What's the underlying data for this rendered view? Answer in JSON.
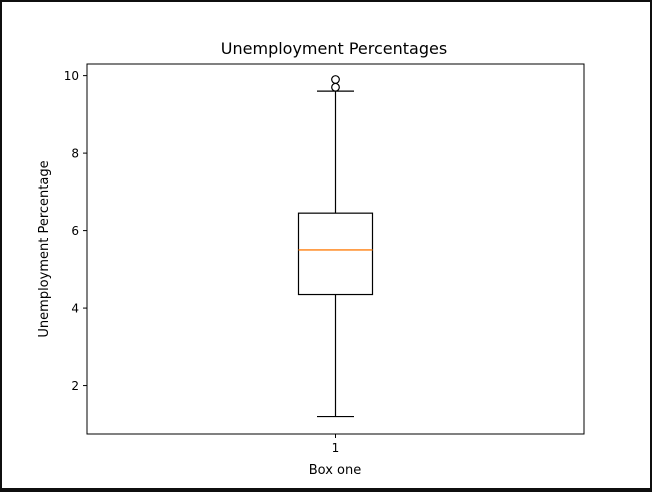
{
  "chart_data": {
    "type": "box",
    "title": "Unemployment Percentages",
    "xlabel": "Box one",
    "ylabel": "Unemployment Percentage",
    "categories": [
      "1"
    ],
    "boxes": [
      {
        "label": "1",
        "whisker_low": 1.2,
        "q1": 4.35,
        "median": 5.5,
        "q3": 6.45,
        "whisker_high": 9.6,
        "outliers": [
          9.7,
          9.9
        ]
      }
    ],
    "ylim": [
      0.75,
      10.3
    ],
    "yticks": [
      2,
      4,
      6,
      8,
      10
    ],
    "grid": false,
    "colors": {
      "median": "#ff7f0e",
      "box": "#000000"
    }
  }
}
